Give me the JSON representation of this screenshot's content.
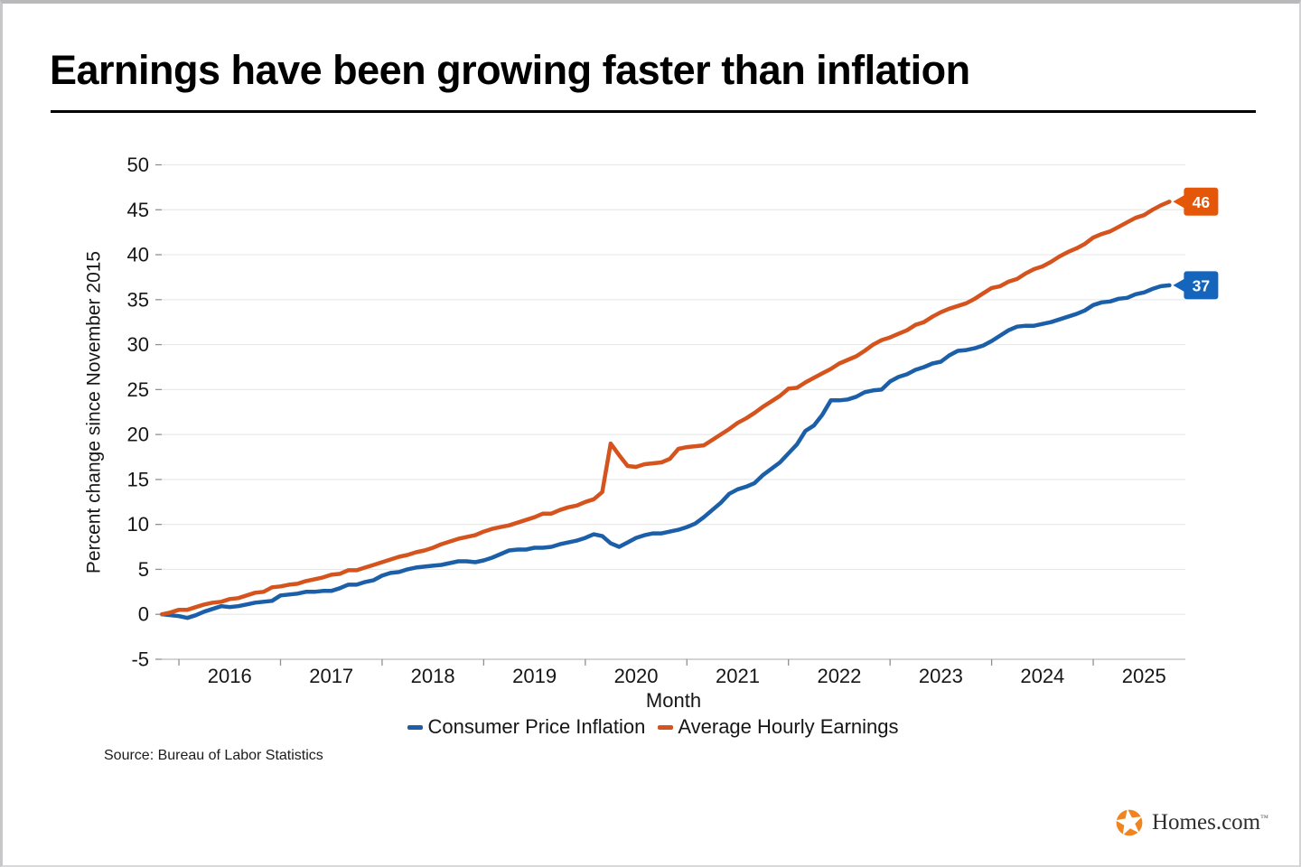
{
  "header": {
    "title": "Earnings have been growing faster than inflation"
  },
  "chart_data": {
    "type": "line",
    "title": "Earnings have been growing faster than inflation",
    "xlabel": "Month",
    "ylabel": "Percent change since November 2015",
    "x_unit": "month",
    "x_range": [
      "2015-11",
      "2025-10"
    ],
    "x_tick_years": [
      2016,
      2017,
      2018,
      2019,
      2020,
      2021,
      2022,
      2023,
      2024,
      2025
    ],
    "ylim": [
      -5,
      50
    ],
    "ytick_step": 5,
    "grid": true,
    "legend_position": "bottom",
    "colors": {
      "grid": "#e9e9e9",
      "axis": "#c6c6c6",
      "tick": "#909090",
      "tick_label": "#161616"
    },
    "series": [
      {
        "name": "Consumer Price Inflation",
        "color": "#1b5fa8",
        "label_bg": "#1565bd",
        "end_label": "37",
        "values": [
          0.0,
          -0.1,
          -0.2,
          -0.4,
          -0.1,
          0.3,
          0.6,
          0.9,
          0.8,
          0.9,
          1.1,
          1.3,
          1.4,
          1.5,
          2.1,
          2.2,
          2.3,
          2.5,
          2.5,
          2.6,
          2.6,
          2.9,
          3.3,
          3.3,
          3.6,
          3.8,
          4.3,
          4.6,
          4.7,
          5.0,
          5.2,
          5.3,
          5.4,
          5.5,
          5.7,
          5.9,
          5.9,
          5.8,
          6.0,
          6.3,
          6.7,
          7.1,
          7.2,
          7.2,
          7.4,
          7.4,
          7.5,
          7.8,
          8.0,
          8.2,
          8.5,
          8.9,
          8.7,
          7.9,
          7.5,
          8.0,
          8.5,
          8.8,
          9.0,
          9.0,
          9.2,
          9.4,
          9.7,
          10.1,
          10.8,
          11.6,
          12.4,
          13.4,
          13.9,
          14.2,
          14.6,
          15.5,
          16.2,
          16.9,
          17.9,
          18.9,
          20.4,
          21.0,
          22.2,
          23.8,
          23.8,
          23.9,
          24.2,
          24.7,
          24.9,
          25.0,
          25.9,
          26.4,
          26.7,
          27.2,
          27.5,
          27.9,
          28.1,
          28.8,
          29.3,
          29.4,
          29.6,
          29.9,
          30.4,
          31.0,
          31.6,
          32.0,
          32.1,
          32.1,
          32.3,
          32.5,
          32.8,
          33.1,
          33.4,
          33.8,
          34.4,
          34.7,
          34.8,
          35.1,
          35.2,
          35.6,
          35.8,
          36.2,
          36.5,
          36.6
        ]
      },
      {
        "name": "Average Hourly Earnings",
        "color": "#d5531d",
        "label_bg": "#e55708",
        "end_label": "46",
        "values": [
          0.0,
          0.2,
          0.5,
          0.5,
          0.8,
          1.1,
          1.3,
          1.4,
          1.7,
          1.8,
          2.1,
          2.4,
          2.5,
          3.0,
          3.1,
          3.3,
          3.4,
          3.7,
          3.9,
          4.1,
          4.4,
          4.5,
          4.9,
          4.9,
          5.2,
          5.5,
          5.8,
          6.1,
          6.4,
          6.6,
          6.9,
          7.1,
          7.4,
          7.8,
          8.1,
          8.4,
          8.6,
          8.8,
          9.2,
          9.5,
          9.7,
          9.9,
          10.2,
          10.5,
          10.8,
          11.2,
          11.2,
          11.6,
          11.9,
          12.1,
          12.5,
          12.8,
          13.6,
          19.0,
          17.7,
          16.5,
          16.4,
          16.7,
          16.8,
          16.9,
          17.3,
          18.4,
          18.6,
          18.7,
          18.8,
          19.4,
          20.0,
          20.6,
          21.3,
          21.8,
          22.4,
          23.1,
          23.7,
          24.3,
          25.1,
          25.2,
          25.8,
          26.3,
          26.8,
          27.3,
          27.9,
          28.3,
          28.7,
          29.3,
          30.0,
          30.5,
          30.8,
          31.2,
          31.6,
          32.2,
          32.5,
          33.1,
          33.6,
          34.0,
          34.3,
          34.6,
          35.1,
          35.7,
          36.3,
          36.5,
          37.0,
          37.3,
          37.9,
          38.4,
          38.7,
          39.2,
          39.8,
          40.3,
          40.7,
          41.2,
          41.9,
          42.3,
          42.6,
          43.1,
          43.6,
          44.1,
          44.4,
          45.0,
          45.5,
          45.9
        ]
      }
    ]
  },
  "footer": {
    "source": "Source: Bureau of Labor Statistics",
    "brand": "Homes.com",
    "trademark": "™",
    "logo_icon": "pinwheel-star-icon"
  }
}
